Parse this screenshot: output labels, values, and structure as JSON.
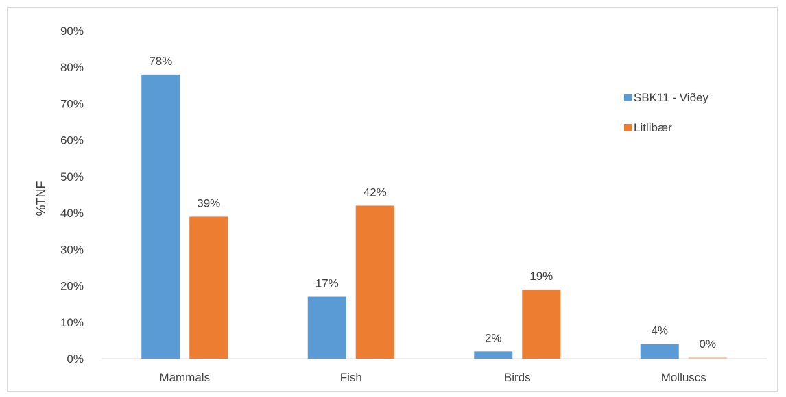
{
  "chart_data": {
    "type": "bar",
    "title": "",
    "xlabel": "",
    "ylabel": "%TNF",
    "ylim": [
      0,
      90
    ],
    "yticks": [
      "0%",
      "10%",
      "20%",
      "30%",
      "40%",
      "50%",
      "60%",
      "70%",
      "80%",
      "90%"
    ],
    "categories": [
      "Mammals",
      "Fish",
      "Birds",
      "Molluscs"
    ],
    "series": [
      {
        "name": "SBK11 - Viðey",
        "color": "#5b9bd5",
        "values": [
          78,
          17,
          2,
          4
        ],
        "labels": [
          "78%",
          "17%",
          "2%",
          "4%"
        ]
      },
      {
        "name": "Litlibær",
        "color": "#ed7d31",
        "values": [
          39,
          42,
          19,
          0
        ],
        "labels": [
          "39%",
          "42%",
          "19%",
          "0%"
        ]
      }
    ],
    "grid": false,
    "legend_position": "right"
  }
}
